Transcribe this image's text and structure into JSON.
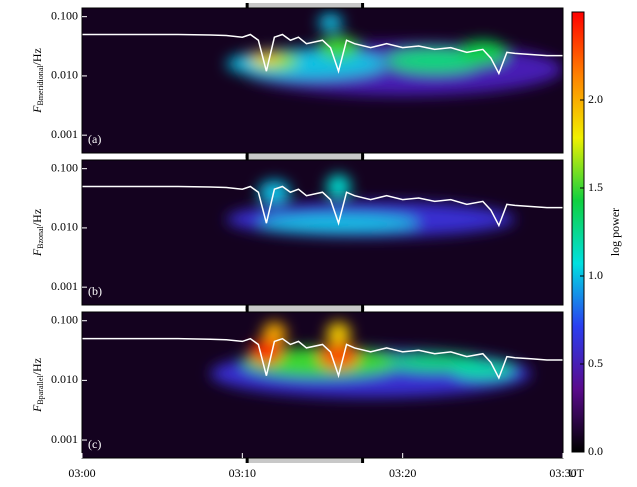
{
  "chart_data": [
    {
      "type": "spectrogram",
      "panel_label": "(a)",
      "ylabel": {
        "symbol": "F",
        "subscript": "Bmeridional",
        "unit": "/Hz"
      },
      "yscale": "log",
      "ylim": [
        0.0005,
        0.14
      ],
      "yticks": [
        {
          "value": 0.1,
          "label": "0.100"
        },
        {
          "value": 0.01,
          "label": "0.010"
        },
        {
          "value": 0.001,
          "label": "0.001"
        }
      ],
      "xlim": [
        0,
        30
      ],
      "interval": [
        10.3,
        17.5
      ],
      "hotspots": [
        {
          "time": 20,
          "freq": 0.013,
          "power": 0.5,
          "duration": 20,
          "decades": 0.9
        },
        {
          "time": 14,
          "freq": 0.016,
          "power": 1.0,
          "duration": 10,
          "decades": 0.5
        },
        {
          "time": 22,
          "freq": 0.018,
          "power": 1.3,
          "duration": 6,
          "decades": 0.4
        },
        {
          "time": 25,
          "freq": 0.025,
          "power": 1.4,
          "duration": 3,
          "decades": 0.4
        },
        {
          "time": 16,
          "freq": 0.03,
          "power": 1.5,
          "duration": 2.5,
          "decades": 0.4
        },
        {
          "time": 15.5,
          "freq": 0.08,
          "power": 1.0,
          "duration": 1.5,
          "decades": 0.3
        },
        {
          "time": 12,
          "freq": 0.018,
          "power": 1.6,
          "duration": 3,
          "decades": 0.3
        },
        {
          "time": 11.5,
          "freq": 0.02,
          "power": 1.9,
          "duration": 2,
          "decades": 0.2
        }
      ],
      "line": {
        "color": "#ffffff",
        "x": [
          0,
          2,
          4,
          6,
          8,
          9,
          10,
          10.5,
          11,
          11.5,
          12,
          12.5,
          13,
          13.5,
          14,
          15,
          15.5,
          16,
          16.5,
          17,
          18,
          19,
          20,
          21,
          22,
          23,
          24,
          25,
          25.5,
          26,
          26.5,
          27,
          28,
          29,
          30
        ],
        "values": [
          0.05,
          0.05,
          0.05,
          0.05,
          0.049,
          0.048,
          0.045,
          0.05,
          0.04,
          0.012,
          0.045,
          0.05,
          0.04,
          0.045,
          0.035,
          0.04,
          0.03,
          0.012,
          0.04,
          0.035,
          0.03,
          0.035,
          0.03,
          0.032,
          0.028,
          0.03,
          0.025,
          0.028,
          0.02,
          0.011,
          0.025,
          0.024,
          0.023,
          0.022,
          0.022
        ]
      }
    },
    {
      "type": "spectrogram",
      "panel_label": "(b)",
      "ylabel": {
        "symbol": "F",
        "subscript": "Bzonal",
        "unit": "/Hz"
      },
      "yscale": "log",
      "ylim": [
        0.0005,
        0.14
      ],
      "yticks": [
        {
          "value": 0.1,
          "label": "0.100"
        },
        {
          "value": 0.01,
          "label": "0.010"
        },
        {
          "value": 0.001,
          "label": "0.001"
        }
      ],
      "xlim": [
        0,
        30
      ],
      "interval": [
        10.3,
        17.5
      ],
      "hotspots": [
        {
          "time": 18,
          "freq": 0.014,
          "power": 0.6,
          "duration": 18,
          "decades": 0.6
        },
        {
          "time": 16,
          "freq": 0.012,
          "power": 1.0,
          "duration": 10,
          "decades": 0.3
        },
        {
          "time": 12,
          "freq": 0.04,
          "power": 1.0,
          "duration": 2,
          "decades": 0.4
        },
        {
          "time": 16,
          "freq": 0.05,
          "power": 1.1,
          "duration": 1.5,
          "decades": 0.4
        }
      ],
      "line": {
        "color": "#ffffff",
        "x": [
          0,
          2,
          4,
          6,
          8,
          9,
          10,
          10.5,
          11,
          11.5,
          12,
          12.5,
          13,
          13.5,
          14,
          15,
          15.5,
          16,
          16.5,
          17,
          18,
          19,
          20,
          21,
          22,
          23,
          24,
          25,
          25.5,
          26,
          26.5,
          27,
          28,
          29,
          30
        ],
        "values": [
          0.05,
          0.05,
          0.05,
          0.05,
          0.049,
          0.048,
          0.045,
          0.05,
          0.04,
          0.012,
          0.045,
          0.05,
          0.04,
          0.045,
          0.035,
          0.04,
          0.03,
          0.012,
          0.04,
          0.035,
          0.03,
          0.035,
          0.03,
          0.032,
          0.028,
          0.03,
          0.025,
          0.028,
          0.02,
          0.011,
          0.025,
          0.024,
          0.023,
          0.022,
          0.022
        ]
      }
    },
    {
      "type": "spectrogram",
      "panel_label": "(c)",
      "ylabel": {
        "symbol": "F",
        "subscript": "Bparallel",
        "unit": "/Hz"
      },
      "yscale": "log",
      "ylim": [
        0.0005,
        0.14
      ],
      "yticks": [
        {
          "value": 0.1,
          "label": "0.100"
        },
        {
          "value": 0.01,
          "label": "0.010"
        },
        {
          "value": 0.001,
          "label": "0.001"
        }
      ],
      "xlim": [
        0,
        30
      ],
      "interval": [
        10.3,
        17.5
      ],
      "xticks": [
        {
          "value": 0,
          "label": "03:00"
        },
        {
          "value": 10,
          "label": "03:10"
        },
        {
          "value": 20,
          "label": "03:20"
        },
        {
          "value": 30,
          "label": "03:30"
        }
      ],
      "xlabel": "UT",
      "hotspots": [
        {
          "time": 18,
          "freq": 0.013,
          "power": 0.6,
          "duration": 20,
          "decades": 0.8
        },
        {
          "time": 15,
          "freq": 0.02,
          "power": 1.5,
          "duration": 10,
          "decades": 0.5
        },
        {
          "time": 22,
          "freq": 0.02,
          "power": 1.3,
          "duration": 6,
          "decades": 0.3
        },
        {
          "time": 25,
          "freq": 0.015,
          "power": 1.2,
          "duration": 4,
          "decades": 0.3
        },
        {
          "time": 12,
          "freq": 0.06,
          "power": 2.0,
          "duration": 1.5,
          "decades": 0.4
        },
        {
          "time": 16,
          "freq": 0.06,
          "power": 1.9,
          "duration": 1.5,
          "decades": 0.4
        },
        {
          "time": 11.5,
          "freq": 0.03,
          "power": 2.4,
          "duration": 2,
          "decades": 0.4
        },
        {
          "time": 16,
          "freq": 0.025,
          "power": 2.3,
          "duration": 2.5,
          "decades": 0.4
        }
      ],
      "line": {
        "color": "#ffffff",
        "x": [
          0,
          2,
          4,
          6,
          8,
          9,
          10,
          10.5,
          11,
          11.5,
          12,
          12.5,
          13,
          13.5,
          14,
          15,
          15.5,
          16,
          16.5,
          17,
          18,
          19,
          20,
          21,
          22,
          23,
          24,
          25,
          25.5,
          26,
          26.5,
          27,
          28,
          29,
          30
        ],
        "values": [
          0.05,
          0.05,
          0.05,
          0.05,
          0.049,
          0.048,
          0.045,
          0.05,
          0.04,
          0.012,
          0.045,
          0.05,
          0.04,
          0.045,
          0.035,
          0.04,
          0.03,
          0.012,
          0.04,
          0.035,
          0.03,
          0.035,
          0.03,
          0.032,
          0.028,
          0.03,
          0.025,
          0.028,
          0.02,
          0.011,
          0.025,
          0.024,
          0.023,
          0.022,
          0.022
        ]
      }
    },
    {
      "type": "colorbar",
      "label": "log power",
      "lim": [
        0,
        2.5
      ],
      "ticks": [
        {
          "value": 0,
          "label": "0.0"
        },
        {
          "value": 0.5,
          "label": "0.5"
        },
        {
          "value": 1,
          "label": "1.0"
        },
        {
          "value": 1.5,
          "label": "1.5"
        },
        {
          "value": 2,
          "label": "2.0"
        }
      ],
      "colors": [
        "#000000",
        "#5a0a8c",
        "#2a3ef0",
        "#00e0e0",
        "#10d040",
        "#f0f000",
        "#ff8000",
        "#ff0000"
      ]
    }
  ]
}
